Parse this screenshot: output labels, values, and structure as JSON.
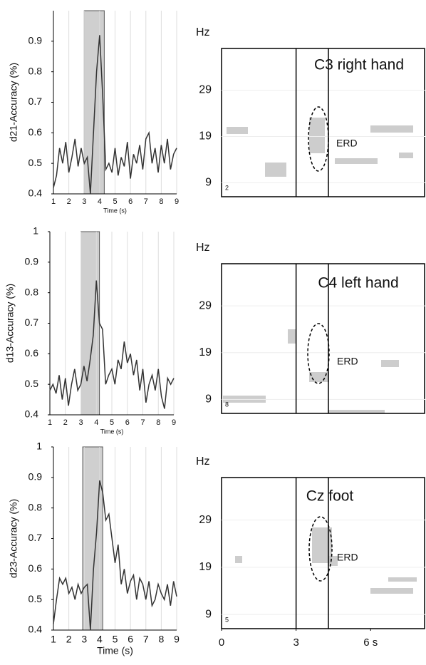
{
  "chart_data": [
    {
      "type": "line",
      "ylabel": "d21-Accuracy (%)",
      "xlabel": "Time (s)",
      "x": [
        1,
        1.2,
        1.4,
        1.6,
        1.8,
        2,
        2.2,
        2.4,
        2.6,
        2.8,
        3,
        3.2,
        3.4,
        3.6,
        3.8,
        4,
        4.2,
        4.4,
        4.6,
        4.8,
        5,
        5.2,
        5.4,
        5.6,
        5.8,
        6,
        6.2,
        6.4,
        6.6,
        6.8,
        7,
        7.2,
        7.4,
        7.6,
        7.8,
        8,
        8.2,
        8.4,
        8.6,
        8.8,
        9
      ],
      "values": [
        0.42,
        0.46,
        0.55,
        0.5,
        0.57,
        0.47,
        0.52,
        0.58,
        0.49,
        0.55,
        0.5,
        0.52,
        0.4,
        0.6,
        0.8,
        0.92,
        0.72,
        0.48,
        0.5,
        0.47,
        0.55,
        0.46,
        0.52,
        0.49,
        0.57,
        0.45,
        0.53,
        0.5,
        0.56,
        0.48,
        0.58,
        0.6,
        0.5,
        0.55,
        0.47,
        0.56,
        0.5,
        0.58,
        0.48,
        0.53,
        0.55
      ],
      "color": "#333333",
      "highlight": [
        3,
        4.3
      ],
      "xlim": [
        1,
        9
      ],
      "xticks": [
        1,
        2,
        3,
        4,
        5,
        6,
        7,
        8,
        9
      ],
      "ylim": [
        0.4,
        1
      ],
      "yticks": [
        0.4,
        0.5,
        0.6,
        0.7,
        0.8,
        0.9
      ],
      "grid": true
    },
    {
      "type": "spectrogram",
      "title": "C3 right hand",
      "ylabel": "Hz",
      "yticks": [
        9,
        19,
        29
      ],
      "ylim": [
        6,
        38
      ],
      "xlim": [
        0,
        8.2
      ],
      "vlines": [
        3,
        4.3
      ],
      "annotation": "ERD",
      "panel_label": "2"
    },
    {
      "type": "line",
      "ylabel": "d13-Accuracy (%)",
      "xlabel": "Time (s)",
      "x": [
        1,
        1.2,
        1.4,
        1.6,
        1.8,
        2,
        2.2,
        2.4,
        2.6,
        2.8,
        3,
        3.2,
        3.4,
        3.6,
        3.8,
        4,
        4.2,
        4.4,
        4.6,
        4.8,
        5,
        5.2,
        5.4,
        5.6,
        5.8,
        6,
        6.2,
        6.4,
        6.6,
        6.8,
        7,
        7.2,
        7.4,
        7.6,
        7.8,
        8,
        8.2,
        8.4,
        8.6,
        8.8,
        9
      ],
      "values": [
        0.48,
        0.5,
        0.47,
        0.53,
        0.45,
        0.52,
        0.43,
        0.5,
        0.55,
        0.48,
        0.5,
        0.56,
        0.51,
        0.58,
        0.66,
        0.84,
        0.7,
        0.68,
        0.5,
        0.53,
        0.55,
        0.5,
        0.58,
        0.55,
        0.64,
        0.57,
        0.6,
        0.53,
        0.58,
        0.48,
        0.55,
        0.44,
        0.5,
        0.53,
        0.48,
        0.55,
        0.46,
        0.42,
        0.52,
        0.5,
        0.52
      ],
      "color": "#333333",
      "highlight": [
        3,
        4.2
      ],
      "xlim": [
        1,
        9
      ],
      "xticks": [
        1,
        2,
        3,
        4,
        5,
        6,
        7,
        8,
        9
      ],
      "ylim": [
        0.4,
        1
      ],
      "yticks": [
        0.4,
        0.5,
        0.6,
        0.7,
        0.8,
        0.9,
        1
      ],
      "grid": true
    },
    {
      "type": "spectrogram",
      "title": "C4 left hand",
      "ylabel": "Hz",
      "yticks": [
        9,
        19,
        29
      ],
      "ylim": [
        6,
        38
      ],
      "xlim": [
        0,
        8.2
      ],
      "vlines": [
        3,
        4.3
      ],
      "annotation": "ERD",
      "panel_label": "8"
    },
    {
      "type": "line",
      "ylabel": "d23-Accuracy (%)",
      "xlabel": "Time (s)",
      "x": [
        1,
        1.2,
        1.4,
        1.6,
        1.8,
        2,
        2.2,
        2.4,
        2.6,
        2.8,
        3,
        3.2,
        3.4,
        3.6,
        3.8,
        4,
        4.2,
        4.4,
        4.6,
        4.8,
        5,
        5.2,
        5.4,
        5.6,
        5.8,
        6,
        6.2,
        6.4,
        6.6,
        6.8,
        7,
        7.2,
        7.4,
        7.6,
        7.8,
        8,
        8.2,
        8.4,
        8.6,
        8.8,
        9
      ],
      "values": [
        0.42,
        0.5,
        0.57,
        0.55,
        0.57,
        0.52,
        0.54,
        0.5,
        0.55,
        0.52,
        0.54,
        0.55,
        0.4,
        0.6,
        0.72,
        0.89,
        0.85,
        0.76,
        0.78,
        0.7,
        0.62,
        0.68,
        0.55,
        0.6,
        0.52,
        0.56,
        0.58,
        0.5,
        0.57,
        0.55,
        0.5,
        0.56,
        0.48,
        0.5,
        0.55,
        0.52,
        0.5,
        0.55,
        0.48,
        0.56,
        0.51
      ],
      "color": "#333333",
      "highlight": [
        2.9,
        4.2
      ],
      "xlim": [
        1,
        9
      ],
      "xticks": [
        1,
        2,
        3,
        4,
        5,
        6,
        7,
        8,
        9
      ],
      "ylim": [
        0.4,
        1
      ],
      "yticks": [
        0.4,
        0.5,
        0.6,
        0.7,
        0.8,
        0.9,
        1
      ],
      "grid": true
    },
    {
      "type": "spectrogram",
      "title": "Cz foot",
      "ylabel": "Hz",
      "yticks": [
        9,
        19,
        29
      ],
      "ylim": [
        6,
        38
      ],
      "xlim": [
        0,
        8.2
      ],
      "xticks": [
        0,
        3,
        {
          "value": 6,
          "label": "6 s"
        }
      ],
      "vlines": [
        3,
        4.3
      ],
      "annotation": "ERD",
      "panel_label": "5"
    }
  ]
}
